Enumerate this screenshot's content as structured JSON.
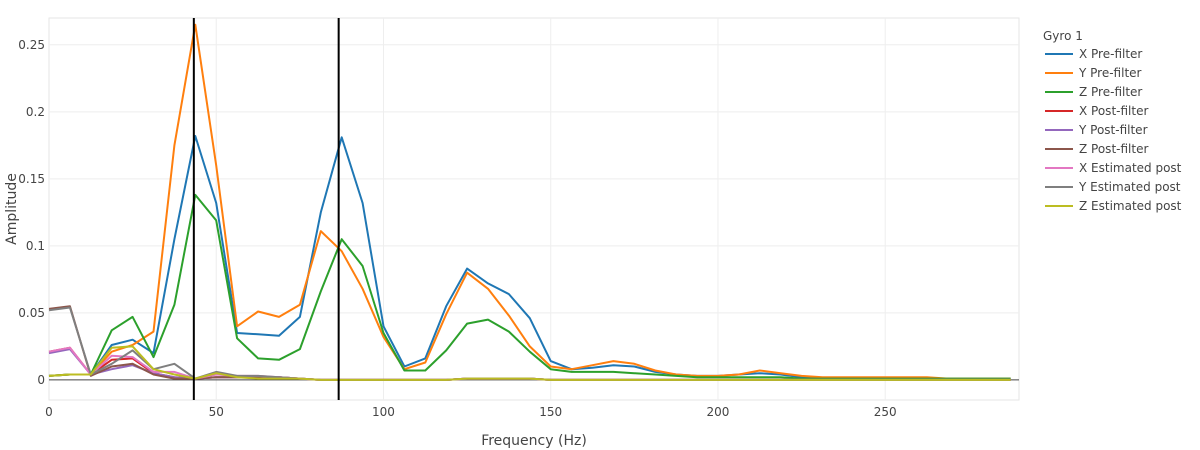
{
  "chart_data": {
    "type": "line",
    "xlabel": "Frequency (Hz)",
    "ylabel": "Amplitude",
    "xlim": [
      0,
      290
    ],
    "ylim": [
      -0.015,
      0.27
    ],
    "xticks": [
      0,
      50,
      100,
      150,
      200,
      250
    ],
    "xtick_labels": [
      "0",
      "50",
      "100",
      "150",
      "200",
      "250"
    ],
    "yticks": [
      0,
      0.05,
      0.1,
      0.15,
      0.2,
      0.25
    ],
    "ytick_labels": [
      "0",
      "0.05",
      "0.1",
      "0.15",
      "0.2",
      "0.25"
    ],
    "grid": true,
    "legend": {
      "title": "Gyro 1",
      "placement": "right"
    },
    "vlines": [
      43.3,
      86.6
    ],
    "x": [
      0,
      6.25,
      12.5,
      18.75,
      25,
      31.25,
      37.5,
      43.75,
      50,
      56.25,
      62.5,
      68.75,
      75,
      81.25,
      87.5,
      93.75,
      100,
      106.25,
      112.5,
      118.75,
      125,
      131.25,
      137.5,
      143.75,
      150,
      156.25,
      162.5,
      168.75,
      175,
      181.25,
      187.5,
      193.75,
      200,
      206.25,
      212.5,
      218.75,
      225,
      231.25,
      237.5,
      243.75,
      250,
      256.25,
      262.5,
      268.75,
      275,
      281.25,
      287.5
    ],
    "series": [
      {
        "name": "X Pre-filter",
        "color": "#1f77b4",
        "values": [
          0.003,
          0.004,
          0.004,
          0.026,
          0.03,
          0.02,
          0.105,
          0.182,
          0.132,
          0.035,
          0.034,
          0.033,
          0.047,
          0.125,
          0.181,
          0.132,
          0.04,
          0.01,
          0.016,
          0.055,
          0.083,
          0.072,
          0.064,
          0.046,
          0.014,
          0.008,
          0.009,
          0.011,
          0.01,
          0.006,
          0.004,
          0.003,
          0.003,
          0.004,
          0.005,
          0.004,
          0.002,
          0.001,
          0.001,
          0.001,
          0.001,
          0.001,
          0.001,
          0.001,
          0.001,
          0.001,
          0.001
        ]
      },
      {
        "name": "Y Pre-filter",
        "color": "#ff7f0e",
        "values": [
          0.003,
          0.004,
          0.004,
          0.021,
          0.026,
          0.036,
          0.175,
          0.265,
          0.16,
          0.04,
          0.051,
          0.047,
          0.056,
          0.111,
          0.096,
          0.068,
          0.032,
          0.008,
          0.013,
          0.049,
          0.08,
          0.068,
          0.048,
          0.025,
          0.01,
          0.008,
          0.011,
          0.014,
          0.012,
          0.007,
          0.004,
          0.003,
          0.003,
          0.004,
          0.007,
          0.005,
          0.003,
          0.002,
          0.002,
          0.002,
          0.002,
          0.002,
          0.002,
          0.001,
          0.001,
          0.001,
          0.001
        ]
      },
      {
        "name": "Z Pre-filter",
        "color": "#2ca02c",
        "values": [
          0.003,
          0.004,
          0.004,
          0.037,
          0.047,
          0.017,
          0.056,
          0.138,
          0.119,
          0.031,
          0.016,
          0.015,
          0.023,
          0.066,
          0.105,
          0.085,
          0.035,
          0.007,
          0.007,
          0.022,
          0.042,
          0.045,
          0.036,
          0.021,
          0.008,
          0.006,
          0.006,
          0.006,
          0.005,
          0.004,
          0.003,
          0.002,
          0.002,
          0.002,
          0.002,
          0.002,
          0.001,
          0.001,
          0.001,
          0.001,
          0.001,
          0.001,
          0.001,
          0.001,
          0.001,
          0.001,
          0.001
        ]
      },
      {
        "name": "X Post-filter",
        "color": "#d62728",
        "values": [
          0.021,
          0.024,
          0.004,
          0.015,
          0.016,
          0.005,
          0.002,
          0.001,
          0.002,
          0.002,
          0.002,
          0.002,
          0.001,
          0.0,
          0.0,
          0.0,
          0.0,
          0.0,
          0.0,
          0.0,
          0.001,
          0.001,
          0.001,
          0.001,
          0.0,
          0.0,
          0.0,
          0.0,
          0.0,
          0.0,
          0.0,
          0.0,
          0.0,
          0.0,
          0.0,
          0.0,
          0.0,
          0.0,
          0.0,
          0.0,
          0.0,
          0.0,
          0.0,
          0.0,
          0.0,
          0.0,
          0.0
        ]
      },
      {
        "name": "Y Post-filter",
        "color": "#9467bd",
        "values": [
          0.02,
          0.023,
          0.004,
          0.008,
          0.011,
          0.005,
          0.002,
          0.001,
          0.002,
          0.002,
          0.002,
          0.002,
          0.001,
          0.0,
          0.0,
          0.0,
          0.0,
          0.0,
          0.0,
          0.0,
          0.001,
          0.001,
          0.001,
          0.001,
          0.0,
          0.0,
          0.0,
          0.0,
          0.0,
          0.0,
          0.0,
          0.0,
          0.0,
          0.0,
          0.0,
          0.0,
          0.0,
          0.0,
          0.0,
          0.0,
          0.0,
          0.0,
          0.0,
          0.0,
          0.0,
          0.0,
          0.0
        ]
      },
      {
        "name": "Z Post-filter",
        "color": "#8c564b",
        "values": [
          0.053,
          0.055,
          0.003,
          0.01,
          0.012,
          0.004,
          0.001,
          0.001,
          0.002,
          0.002,
          0.002,
          0.002,
          0.001,
          0.0,
          0.0,
          0.0,
          0.0,
          0.0,
          0.0,
          0.0,
          0.001,
          0.001,
          0.001,
          0.001,
          0.0,
          0.0,
          0.0,
          0.0,
          0.0,
          0.0,
          0.0,
          0.0,
          0.0,
          0.0,
          0.0,
          0.0,
          0.0,
          0.0,
          0.0,
          0.0,
          0.0,
          0.0,
          0.0,
          0.0,
          0.0,
          0.0,
          0.0
        ]
      },
      {
        "name": "X Estimated post",
        "color": "#e377c2",
        "values": [
          0.021,
          0.024,
          0.004,
          0.018,
          0.017,
          0.006,
          0.006,
          0.001,
          0.004,
          0.003,
          0.003,
          0.002,
          0.001,
          0.0,
          0.0,
          0.0,
          0.0,
          0.0,
          0.0,
          0.0,
          0.001,
          0.001,
          0.001,
          0.001,
          0.0,
          0.0,
          0.0,
          0.0,
          0.0,
          0.0,
          0.0,
          0.0,
          0.0,
          0.0,
          0.0,
          0.0,
          0.0,
          0.0,
          0.0,
          0.0,
          0.0,
          0.0,
          0.0,
          0.0,
          0.0,
          0.0,
          0.0
        ]
      },
      {
        "name": "Y Estimated post",
        "color": "#7f7f7f",
        "values": [
          0.052,
          0.054,
          0.004,
          0.012,
          0.022,
          0.008,
          0.012,
          0.001,
          0.006,
          0.003,
          0.003,
          0.002,
          0.001,
          0.0,
          0.0,
          0.0,
          0.0,
          0.0,
          0.0,
          0.0,
          0.001,
          0.001,
          0.001,
          0.001,
          0.0,
          0.0,
          0.0,
          0.0,
          0.0,
          0.0,
          0.0,
          0.0,
          0.0,
          0.0,
          0.0,
          0.0,
          0.0,
          0.0,
          0.0,
          0.0,
          0.0,
          0.0,
          0.0,
          0.0,
          0.0,
          0.0,
          0.0
        ]
      },
      {
        "name": "Z Estimated post",
        "color": "#bcbd22",
        "values": [
          0.003,
          0.004,
          0.004,
          0.024,
          0.025,
          0.008,
          0.004,
          0.001,
          0.005,
          0.002,
          0.001,
          0.001,
          0.001,
          0.0,
          0.0,
          0.0,
          0.0,
          0.0,
          0.0,
          0.0,
          0.001,
          0.001,
          0.001,
          0.001,
          0.0,
          0.0,
          0.0,
          0.0,
          0.0,
          0.0,
          0.0,
          0.0,
          0.0,
          0.0,
          0.0,
          0.0,
          0.0,
          0.0,
          0.0,
          0.0,
          0.0,
          0.0,
          0.0,
          0.0,
          0.0,
          0.0,
          0.0
        ]
      }
    ]
  }
}
